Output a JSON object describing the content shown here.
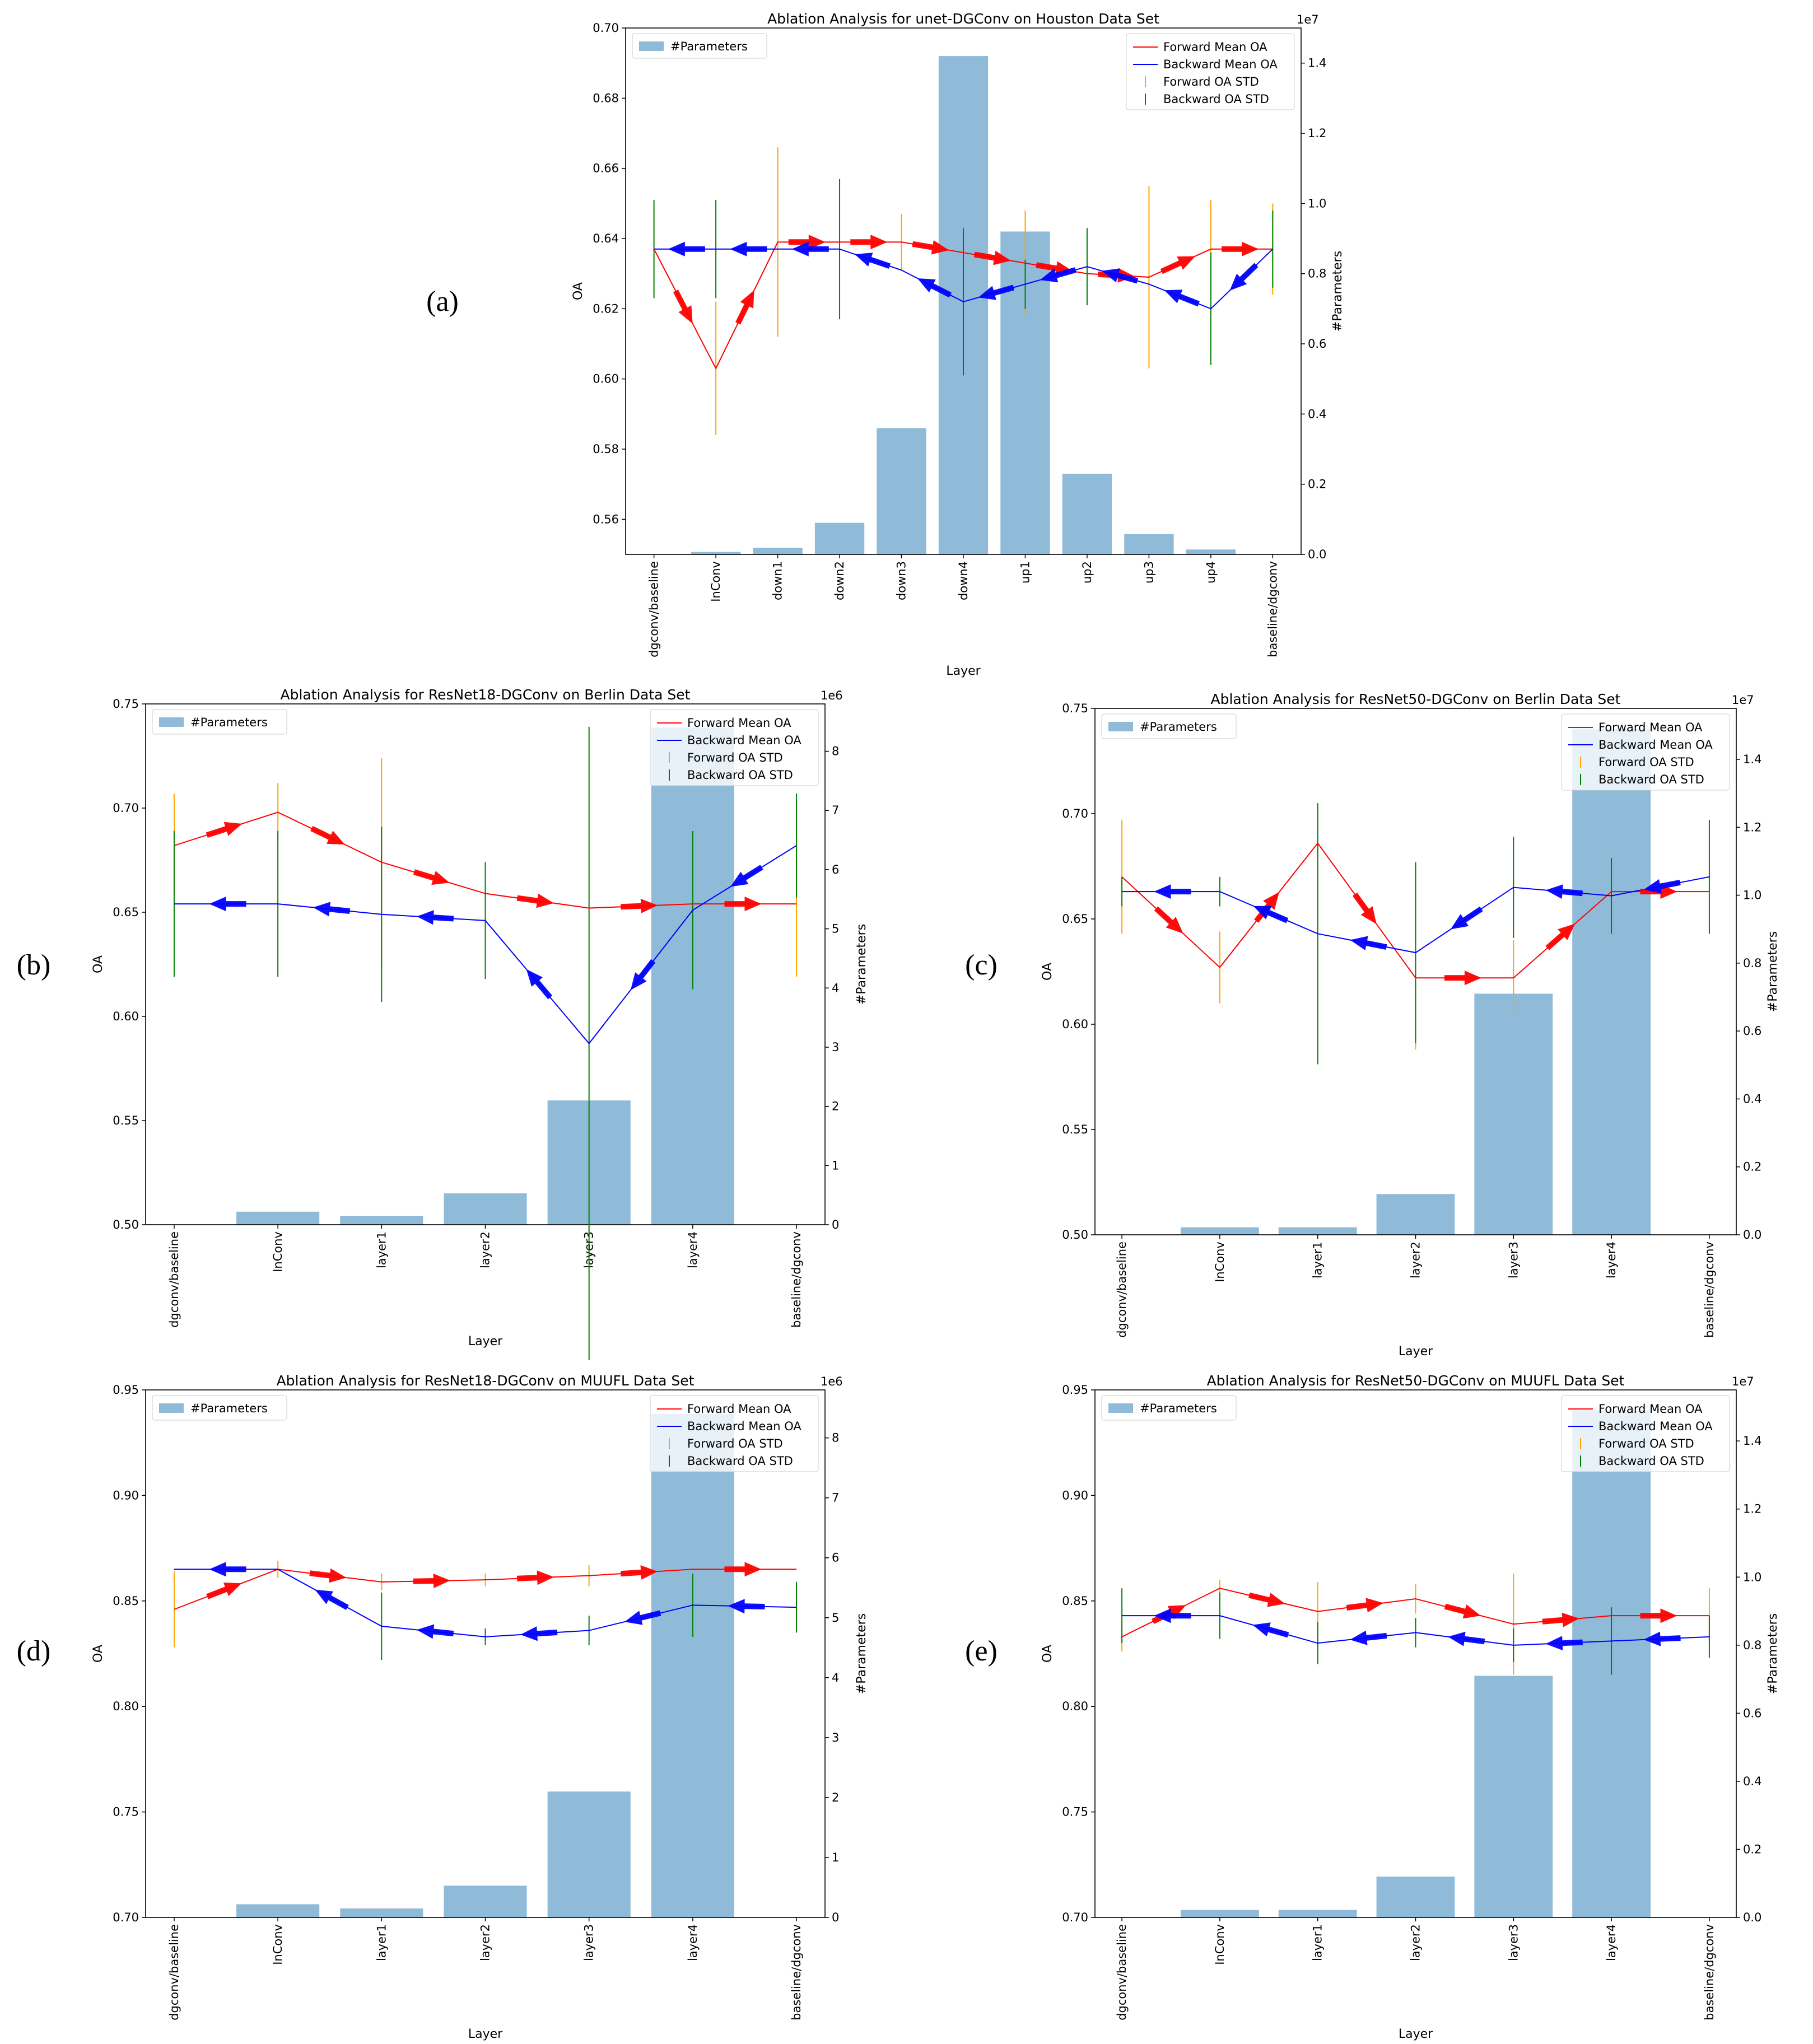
{
  "legend_labels": {
    "params": "#Parameters",
    "fwd_mean": "Forward Mean OA",
    "bwd_mean": "Backward Mean OA",
    "fwd_std": "Forward OA STD",
    "bwd_std": "Backward OA STD"
  },
  "axis_labels": {
    "x": "Layer",
    "y_left": "OA",
    "y_right": "#Parameters"
  },
  "colors": {
    "bar": "#8fbbd9",
    "forward": "#ff0000",
    "backward": "#0000ff",
    "forward_std": "#ffa500",
    "backward_std": "#008000",
    "axis": "#000000"
  },
  "chart_data": [
    {
      "panel": "(a)",
      "type": "bar",
      "title": "Ablation Analysis for unet-DGConv on Houston Data Set",
      "xlabel": "Layer",
      "ylabel": "OA",
      "y2label": "#Parameters",
      "categories": [
        "dgconv/baseline",
        "InConv",
        "down1",
        "down2",
        "down3",
        "down4",
        "up1",
        "up2",
        "up3",
        "up4",
        "baseline/dgconv"
      ],
      "ylim": [
        0.55,
        0.7
      ],
      "yticks": [
        0.56,
        0.58,
        0.6,
        0.62,
        0.64,
        0.66,
        0.68,
        0.7
      ],
      "ytick_labels": [
        "0.56",
        "0.58",
        "0.60",
        "0.62",
        "0.64",
        "0.66",
        "0.68",
        "0.70"
      ],
      "y2lim": [
        0,
        1.5
      ],
      "y2ticks": [
        0,
        0.2,
        0.4,
        0.6,
        0.8,
        1.0,
        1.2,
        1.4
      ],
      "y2tick_labels": [
        "0.0",
        "0.2",
        "0.4",
        "0.6",
        "0.8",
        "1.0",
        "1.2",
        "1.4"
      ],
      "y2_scale_label": "1e7",
      "params": [
        0,
        0.007,
        0.019,
        0.09,
        0.36,
        1.42,
        0.92,
        0.23,
        0.058,
        0.014,
        0
      ],
      "series": [
        {
          "name": "Forward Mean OA",
          "values": [
            0.637,
            0.603,
            0.639,
            0.639,
            0.639,
            0.636,
            0.633,
            0.63,
            0.629,
            0.637,
            0.637
          ]
        },
        {
          "name": "Backward Mean OA",
          "values": [
            0.637,
            0.637,
            0.637,
            0.637,
            0.631,
            0.622,
            0.627,
            0.632,
            0.627,
            0.62,
            0.637
          ]
        },
        {
          "name": "Forward OA STD",
          "values": [
            0,
            0.019,
            0.027,
            0,
            0.008,
            0,
            0.015,
            0,
            0.026,
            0.014,
            0.013
          ]
        },
        {
          "name": "Backward OA STD",
          "values": [
            0.014,
            0.014,
            0,
            0.02,
            0,
            0.021,
            0.007,
            0.011,
            0,
            0.016,
            0.011
          ]
        }
      ]
    },
    {
      "panel": "(b)",
      "type": "bar",
      "title": "Ablation Analysis for ResNet18-DGConv on Berlin Data Set",
      "xlabel": "Layer",
      "ylabel": "OA",
      "y2label": "#Parameters",
      "categories": [
        "dgconv/baseline",
        "InConv",
        "layer1",
        "layer2",
        "layer3",
        "layer4",
        "baseline/dgconv"
      ],
      "ylim": [
        0.5,
        0.75
      ],
      "yticks": [
        0.5,
        0.55,
        0.6,
        0.65,
        0.7,
        0.75
      ],
      "ytick_labels": [
        "0.50",
        "0.55",
        "0.60",
        "0.65",
        "0.70",
        "0.75"
      ],
      "y2lim": [
        0,
        8.8
      ],
      "y2ticks": [
        0,
        1,
        2,
        3,
        4,
        5,
        6,
        7,
        8
      ],
      "y2tick_labels": [
        "0",
        "1",
        "2",
        "3",
        "4",
        "5",
        "6",
        "7",
        "8"
      ],
      "y2_scale_label": "1e6",
      "params": [
        0,
        0.22,
        0.15,
        0.53,
        2.1,
        8.4,
        0
      ],
      "series": [
        {
          "name": "Forward Mean OA",
          "values": [
            0.682,
            0.698,
            0.674,
            0.659,
            0.652,
            0.654,
            0.654
          ]
        },
        {
          "name": "Backward Mean OA",
          "values": [
            0.654,
            0.654,
            0.649,
            0.646,
            0.587,
            0.651,
            0.682
          ]
        },
        {
          "name": "Forward OA STD",
          "values": [
            0.025,
            0.014,
            0.05,
            0,
            0,
            0,
            0.035
          ]
        },
        {
          "name": "Backward OA STD",
          "values": [
            0.035,
            0.035,
            0.042,
            0.028,
            0.152,
            0.038,
            0.025
          ]
        }
      ]
    },
    {
      "panel": "(c)",
      "type": "bar",
      "title": "Ablation Analysis for ResNet50-DGConv on Berlin Data Set",
      "xlabel": "Layer",
      "ylabel": "OA",
      "y2label": "#Parameters",
      "categories": [
        "dgconv/baseline",
        "InConv",
        "layer1",
        "layer2",
        "layer3",
        "layer4",
        "baseline/dgconv"
      ],
      "ylim": [
        0.5,
        0.75
      ],
      "yticks": [
        0.5,
        0.55,
        0.6,
        0.65,
        0.7,
        0.75
      ],
      "ytick_labels": [
        "0.50",
        "0.55",
        "0.60",
        "0.65",
        "0.70",
        "0.75"
      ],
      "y2lim": [
        0,
        1.55
      ],
      "y2ticks": [
        0,
        0.2,
        0.4,
        0.6,
        0.8,
        1.0,
        1.2,
        1.4
      ],
      "y2tick_labels": [
        "0.0",
        "0.2",
        "0.4",
        "0.6",
        "0.8",
        "1.0",
        "1.2",
        "1.4"
      ],
      "y2_scale_label": "1e7",
      "params": [
        0,
        0.022,
        0.022,
        0.12,
        0.71,
        1.49,
        0
      ],
      "series": [
        {
          "name": "Forward Mean OA",
          "values": [
            0.67,
            0.627,
            0.686,
            0.622,
            0.622,
            0.663,
            0.663
          ]
        },
        {
          "name": "Backward Mean OA",
          "values": [
            0.663,
            0.663,
            0.643,
            0.634,
            0.665,
            0.661,
            0.67
          ]
        },
        {
          "name": "Forward OA STD",
          "values": [
            0.027,
            0.017,
            0,
            0.034,
            0.018,
            0,
            0
          ]
        },
        {
          "name": "Backward OA STD",
          "values": [
            0.007,
            0.007,
            0.062,
            0.043,
            0.024,
            0.018,
            0.027
          ]
        }
      ]
    },
    {
      "panel": "(d)",
      "type": "bar",
      "title": "Ablation Analysis for ResNet18-DGConv on MUUFL Data Set",
      "xlabel": "Layer",
      "ylabel": "OA",
      "y2label": "#Parameters",
      "categories": [
        "dgconv/baseline",
        "InConv",
        "layer1",
        "layer2",
        "layer3",
        "layer4",
        "baseline/dgconv"
      ],
      "ylim": [
        0.7,
        0.95
      ],
      "yticks": [
        0.7,
        0.75,
        0.8,
        0.85,
        0.9,
        0.95
      ],
      "ytick_labels": [
        "0.70",
        "0.75",
        "0.80",
        "0.85",
        "0.90",
        "0.95"
      ],
      "y2lim": [
        0,
        8.8
      ],
      "y2ticks": [
        0,
        1,
        2,
        3,
        4,
        5,
        6,
        7,
        8
      ],
      "y2tick_labels": [
        "0",
        "1",
        "2",
        "3",
        "4",
        "5",
        "6",
        "7",
        "8"
      ],
      "y2_scale_label": "1e6",
      "params": [
        0,
        0.22,
        0.15,
        0.53,
        2.1,
        8.4,
        0
      ],
      "series": [
        {
          "name": "Forward Mean OA",
          "values": [
            0.846,
            0.865,
            0.859,
            0.86,
            0.862,
            0.865,
            0.865
          ]
        },
        {
          "name": "Backward Mean OA",
          "values": [
            0.865,
            0.865,
            0.838,
            0.833,
            0.836,
            0.848,
            0.847
          ]
        },
        {
          "name": "Forward OA STD",
          "values": [
            0.018,
            0.004,
            0.004,
            0.003,
            0.005,
            0,
            0
          ]
        },
        {
          "name": "Backward OA STD",
          "values": [
            0,
            0,
            0.016,
            0.004,
            0.007,
            0.015,
            0.012
          ]
        }
      ]
    },
    {
      "panel": "(e)",
      "type": "bar",
      "title": "Ablation Analysis for ResNet50-DGConv on MUUFL Data Set",
      "xlabel": "Layer",
      "ylabel": "OA",
      "y2label": "#Parameters",
      "categories": [
        "dgconv/baseline",
        "InConv",
        "layer1",
        "layer2",
        "layer3",
        "layer4",
        "baseline/dgconv"
      ],
      "ylim": [
        0.7,
        0.95
      ],
      "yticks": [
        0.7,
        0.75,
        0.8,
        0.85,
        0.9,
        0.95
      ],
      "ytick_labels": [
        "0.70",
        "0.75",
        "0.80",
        "0.85",
        "0.90",
        "0.95"
      ],
      "y2lim": [
        0,
        1.55
      ],
      "y2ticks": [
        0,
        0.2,
        0.4,
        0.6,
        0.8,
        1.0,
        1.2,
        1.4
      ],
      "y2tick_labels": [
        "0.0",
        "0.2",
        "0.4",
        "0.6",
        "0.8",
        "1.0",
        "1.2",
        "1.4"
      ],
      "y2_scale_label": "1e7",
      "params": [
        0,
        0.022,
        0.022,
        0.12,
        0.71,
        1.49,
        0
      ],
      "series": [
        {
          "name": "Forward Mean OA",
          "values": [
            0.833,
            0.856,
            0.845,
            0.851,
            0.839,
            0.843,
            0.843
          ]
        },
        {
          "name": "Backward Mean OA",
          "values": [
            0.843,
            0.843,
            0.83,
            0.835,
            0.829,
            0.831,
            0.833
          ]
        },
        {
          "name": "Forward OA STD",
          "values": [
            0.007,
            0.004,
            0.014,
            0.007,
            0.024,
            0,
            0.013
          ]
        },
        {
          "name": "Backward OA STD",
          "values": [
            0.013,
            0.011,
            0.01,
            0.007,
            0.008,
            0.016,
            0.01
          ]
        }
      ]
    }
  ]
}
